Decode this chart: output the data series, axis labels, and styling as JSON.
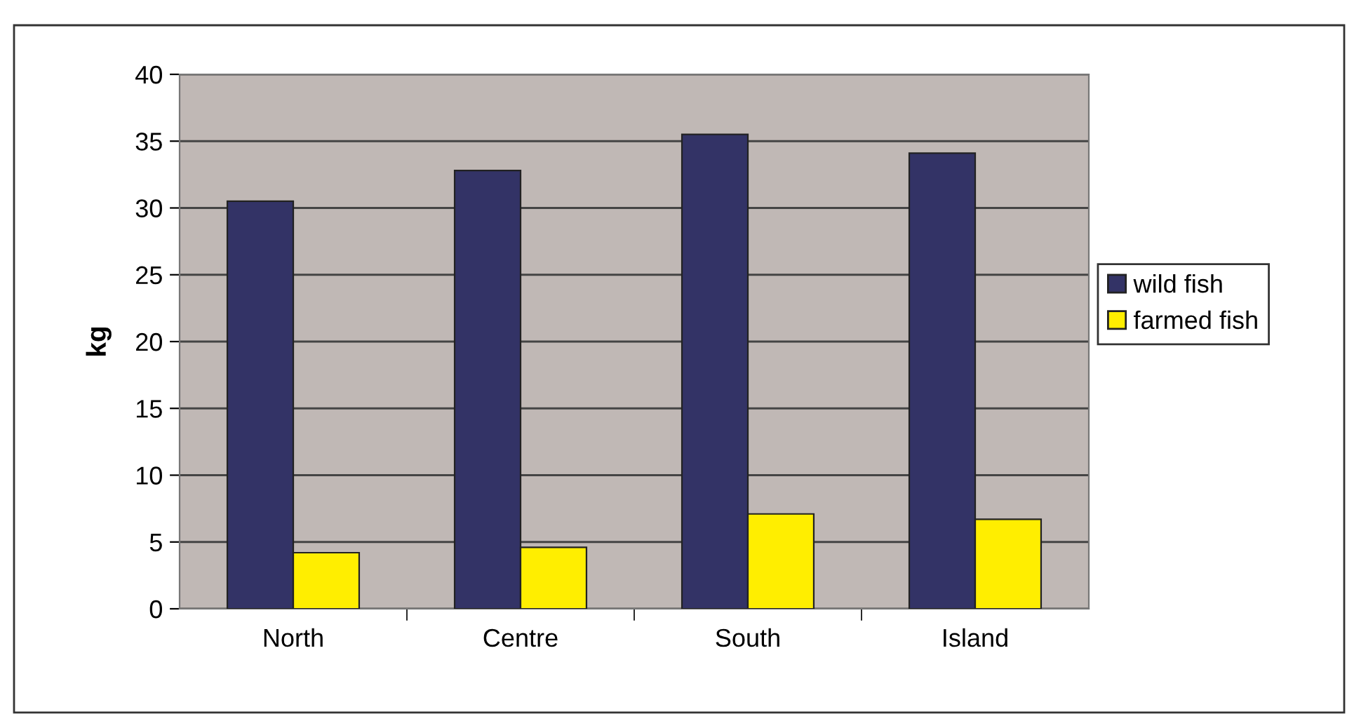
{
  "chart_data": {
    "type": "bar",
    "ylabel": "kg",
    "categories": [
      "North",
      "Centre",
      "South",
      "Island"
    ],
    "series": [
      {
        "name": "wild fish",
        "color": "#333366",
        "values": [
          30.5,
          32.8,
          35.5,
          34.1
        ]
      },
      {
        "name": "farmed fish",
        "color": "#ffee00",
        "values": [
          4.2,
          4.6,
          7.1,
          6.7
        ]
      }
    ],
    "ylim": [
      0,
      40
    ],
    "yticks": [
      0,
      5,
      10,
      15,
      20,
      25,
      30,
      35,
      40
    ],
    "grid": "y",
    "legend": "right"
  }
}
